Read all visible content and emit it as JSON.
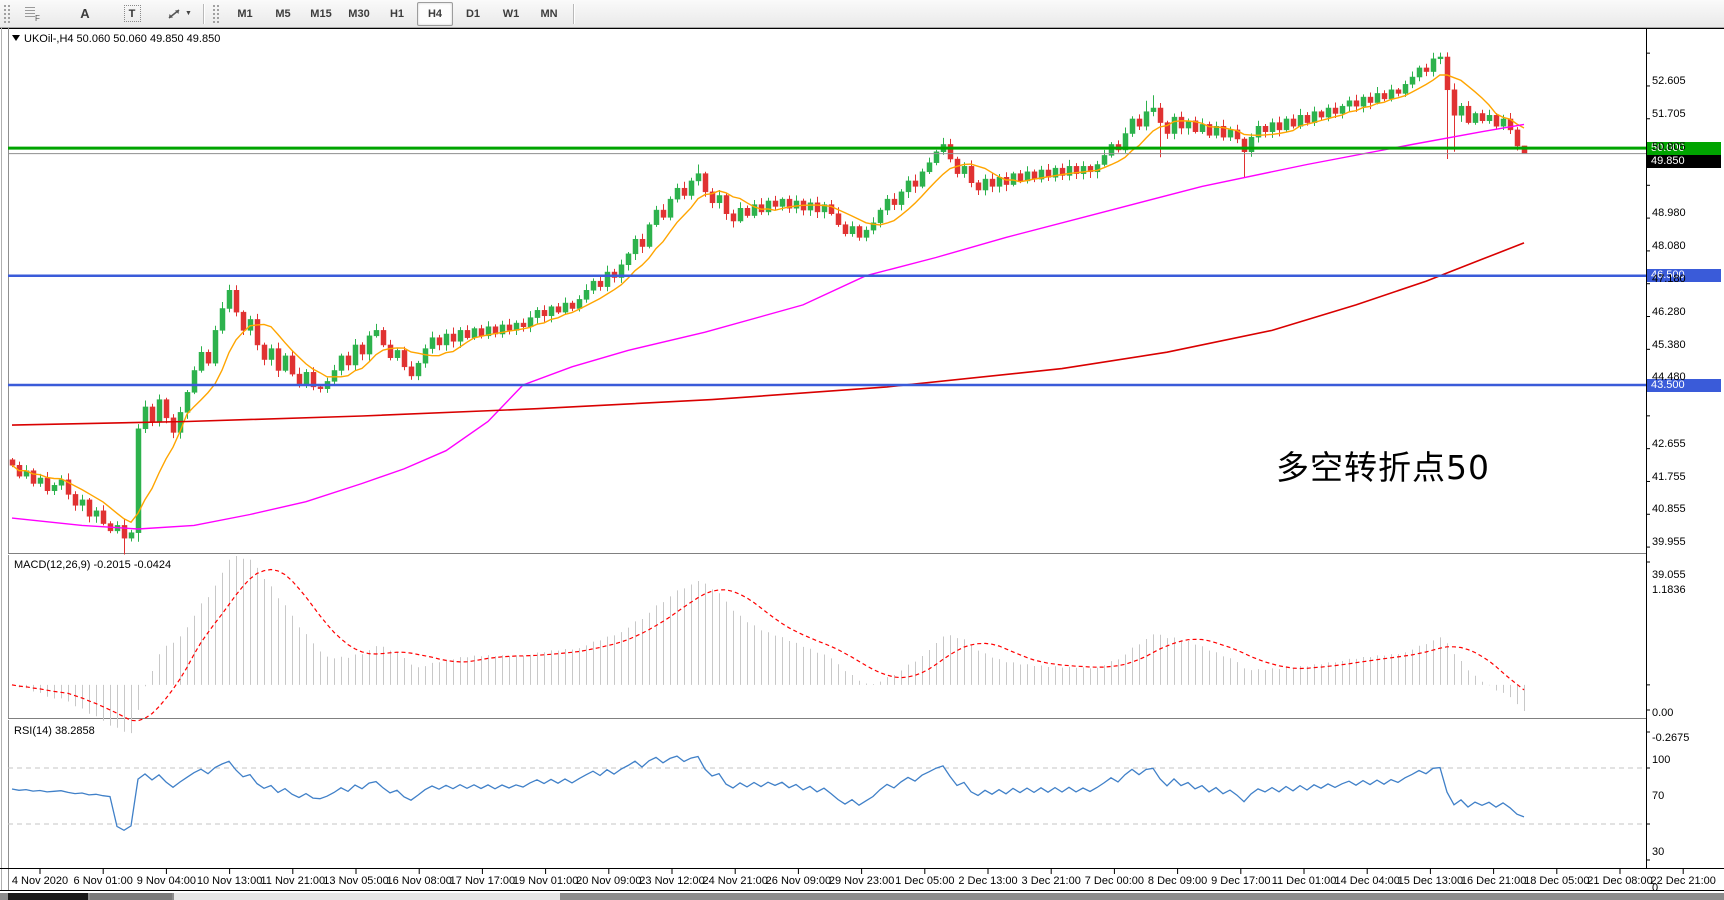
{
  "toolbar": {
    "tools": {
      "grid_tool": "F",
      "text_label_tool": "A",
      "text_box_tool": "T",
      "arrow_tool_caret": "▼"
    },
    "timeframes": [
      "M1",
      "M5",
      "M15",
      "M30",
      "H1",
      "H4",
      "D1",
      "W1",
      "MN"
    ],
    "active_timeframe": "H4"
  },
  "chart": {
    "title": "UKOil-,H4  50.060 50.060 49.850 49.850",
    "annotation": {
      "text": "多空转折点50",
      "color": "#e81d1d"
    },
    "hlines": [
      {
        "price": 50.0,
        "color": "#00a400",
        "width": 3,
        "label": "50.000",
        "label_bg": "#00a400"
      },
      {
        "price": 49.85,
        "color": "#8f8f8f",
        "width": 1,
        "label": "49.850",
        "label_bg": "#000000"
      },
      {
        "price": 46.5,
        "color": "#3a5bd9",
        "width": 2.5,
        "label": "46.500",
        "label_bg": "#3a5bd9"
      },
      {
        "price": 43.5,
        "color": "#3a5bd9",
        "width": 2.5,
        "label": "43.500",
        "label_bg": "#3a5bd9"
      }
    ]
  },
  "chart_data": {
    "type": "candlestick",
    "symbol": "UKOil",
    "timeframe": "H4",
    "current_bar": {
      "open": 50.06,
      "high": 50.06,
      "low": 49.85,
      "close": 49.85
    },
    "ylim": [
      38.92,
      53.24
    ],
    "y_ticks": [
      "52.605",
      "51.705",
      "50.805",
      "48.980",
      "48.080",
      "47.180",
      "46.280",
      "45.380",
      "44.480",
      "42.655",
      "41.755",
      "40.855",
      "39.955",
      "39.055"
    ],
    "x_labels": [
      "4 Nov 2020",
      "6 Nov 01:00",
      "9 Nov 04:00",
      "10 Nov 13:00",
      "11 Nov 21:00",
      "13 Nov 05:00",
      "16 Nov 08:00",
      "17 Nov 17:00",
      "19 Nov 01:00",
      "20 Nov 09:00",
      "23 Nov 12:00",
      "24 Nov 21:00",
      "26 Nov 09:00",
      "29 Nov 23:00",
      "1 Dec 05:00",
      "2 Dec 13:00",
      "3 Dec 21:00",
      "7 Dec 00:00",
      "8 Dec 09:00",
      "9 Dec 17:00",
      "11 Dec 01:00",
      "14 Dec 04:00",
      "15 Dec 13:00",
      "16 Dec 21:00",
      "18 Dec 05:00",
      "21 Dec 08:00",
      "22 Dec 21:00"
    ],
    "closes": [
      41.3,
      41.0,
      41.15,
      40.8,
      40.95,
      40.6,
      40.75,
      40.9,
      40.5,
      40.2,
      40.35,
      39.9,
      40.05,
      39.7,
      39.5,
      39.65,
      39.3,
      39.45,
      42.3,
      42.9,
      42.5,
      43.1,
      42.6,
      42.2,
      42.75,
      43.3,
      43.9,
      44.4,
      44.1,
      45.0,
      45.6,
      46.1,
      45.5,
      45.0,
      45.3,
      44.6,
      44.2,
      44.5,
      43.9,
      44.3,
      43.8,
      43.5,
      43.85,
      43.45,
      43.4,
      43.6,
      43.9,
      44.3,
      44.05,
      44.6,
      44.35,
      44.85,
      45.0,
      44.6,
      44.25,
      44.45,
      44.0,
      43.75,
      44.1,
      44.5,
      44.8,
      44.6,
      44.9,
      44.7,
      45.0,
      44.8,
      45.05,
      44.85,
      45.1,
      44.9,
      45.15,
      45.0,
      45.2,
      45.1,
      45.35,
      45.55,
      45.4,
      45.65,
      45.5,
      45.75,
      45.6,
      45.85,
      46.1,
      46.35,
      46.2,
      46.6,
      46.45,
      46.8,
      47.1,
      47.5,
      47.3,
      47.9,
      48.3,
      48.1,
      48.6,
      48.9,
      48.7,
      49.1,
      49.3,
      48.8,
      48.5,
      48.7,
      48.2,
      48.0,
      48.35,
      48.15,
      48.45,
      48.25,
      48.55,
      48.4,
      48.6,
      48.35,
      48.55,
      48.3,
      48.5,
      48.25,
      48.45,
      48.2,
      47.9,
      47.65,
      47.85,
      47.55,
      47.75,
      47.95,
      48.3,
      48.6,
      48.45,
      48.8,
      49.1,
      48.95,
      49.35,
      49.6,
      49.9,
      50.1,
      49.7,
      49.3,
      49.5,
      49.05,
      48.85,
      49.15,
      48.95,
      49.2,
      49.0,
      49.3,
      49.1,
      49.35,
      49.15,
      49.4,
      49.2,
      49.45,
      49.25,
      49.5,
      49.3,
      49.5,
      49.35,
      49.55,
      49.8,
      50.1,
      49.95,
      50.4,
      50.8,
      50.6,
      51.0,
      51.1,
      50.7,
      50.4,
      50.85,
      50.55,
      50.75,
      50.45,
      50.65,
      50.35,
      50.6,
      50.3,
      50.5,
      50.25,
      49.9,
      50.3,
      50.6,
      50.45,
      50.7,
      50.5,
      50.8,
      50.6,
      50.9,
      50.7,
      51.0,
      50.85,
      51.1,
      50.95,
      51.15,
      51.3,
      51.15,
      51.4,
      51.25,
      51.5,
      51.35,
      51.6,
      51.5,
      51.75,
      51.95,
      52.2,
      52.1,
      52.45,
      52.5,
      51.6,
      50.9,
      51.15,
      50.7,
      50.95,
      50.75,
      50.9,
      50.6,
      50.8,
      50.5,
      50.06,
      49.85
    ],
    "wick_overrides": {
      "16": {
        "l": 38.85
      },
      "18": {
        "l": 39.2
      },
      "31": {
        "h": 46.25
      },
      "98": {
        "h": 49.55
      },
      "133": {
        "h": 50.28
      },
      "162": {
        "h": 51.3
      },
      "163": {
        "h": 51.45
      },
      "164": {
        "l": 49.75
      },
      "176": {
        "l": 49.2
      },
      "204": {
        "h": 52.62
      },
      "205": {
        "l": 49.7
      },
      "206": {
        "l": 49.9
      },
      "216": {
        "h": 50.06,
        "l": 49.84
      }
    },
    "colors": {
      "bull": "#2db24d",
      "bear": "#e03232",
      "ma_fast": "#ffa500",
      "ma_mid": "#ff00ff",
      "ma_slow": "#d90000",
      "macd_hist": "#c8c8c8",
      "macd_signal": "#ff0000",
      "rsi": "#4080c8",
      "level_dashed": "#c4c4c4"
    },
    "ma_mid_points": [
      [
        0,
        39.85
      ],
      [
        10,
        39.65
      ],
      [
        18,
        39.55
      ],
      [
        26,
        39.65
      ],
      [
        34,
        39.95
      ],
      [
        42,
        40.3
      ],
      [
        50,
        40.8
      ],
      [
        56,
        41.2
      ],
      [
        62,
        41.7
      ],
      [
        68,
        42.5
      ],
      [
        73,
        43.5
      ],
      [
        80,
        44.0
      ],
      [
        88,
        44.45
      ],
      [
        99,
        44.95
      ],
      [
        113,
        45.7
      ],
      [
        122,
        46.5
      ],
      [
        132,
        47.0
      ],
      [
        142,
        47.55
      ],
      [
        156,
        48.25
      ],
      [
        170,
        48.95
      ],
      [
        185,
        49.55
      ],
      [
        200,
        50.1
      ],
      [
        210,
        50.45
      ],
      [
        216,
        50.65
      ]
    ],
    "ma_slow_points": [
      [
        0,
        42.4
      ],
      [
        25,
        42.5
      ],
      [
        50,
        42.65
      ],
      [
        75,
        42.85
      ],
      [
        100,
        43.1
      ],
      [
        125,
        43.45
      ],
      [
        150,
        43.95
      ],
      [
        165,
        44.4
      ],
      [
        180,
        45.0
      ],
      [
        192,
        45.7
      ],
      [
        202,
        46.35
      ],
      [
        210,
        46.95
      ],
      [
        216,
        47.4
      ]
    ]
  },
  "macd": {
    "label": "MACD(12,26,9) -0.2015 -0.0424",
    "value": -0.2015,
    "signal": -0.0424,
    "axis_labels": [
      "1.1836",
      "0.00",
      "-0.2675"
    ],
    "range": [
      -0.2675,
      1.1836
    ]
  },
  "rsi": {
    "label": "RSI(14) 38.2858",
    "value": 38.2858,
    "axis_labels": [
      "100",
      "70",
      "30",
      "0"
    ],
    "levels": [
      70,
      30
    ]
  }
}
